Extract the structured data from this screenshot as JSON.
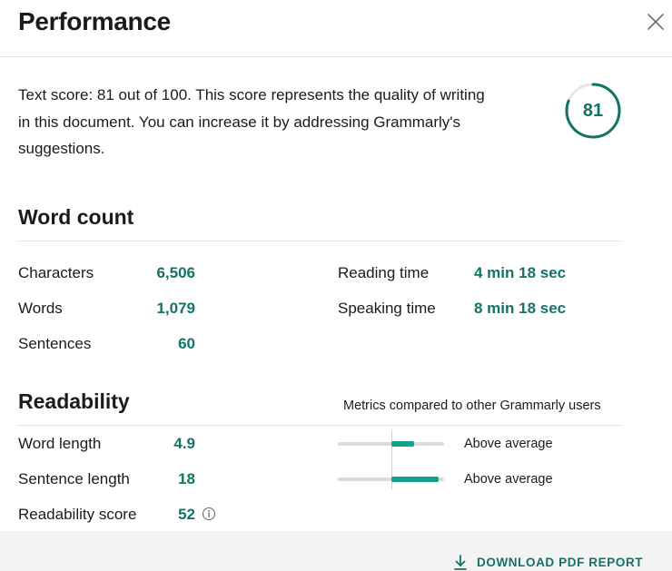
{
  "dialog": {
    "title": "Performance",
    "close_icon": "close-icon"
  },
  "score": {
    "description": "Text score: 81 out of 100. This score represents the quality of writing in this document. You can increase it by addressing Grammarly's suggestions.",
    "value": "81",
    "max": 100,
    "ring_color": "#137366"
  },
  "word_count": {
    "title": "Word count",
    "left": [
      {
        "label": "Characters",
        "value": "6,506"
      },
      {
        "label": "Words",
        "value": "1,079"
      },
      {
        "label": "Sentences",
        "value": "60"
      }
    ],
    "right": [
      {
        "label": "Reading time",
        "value": "4 min 18 sec"
      },
      {
        "label": "Speaking time",
        "value": "8 min 18 sec"
      }
    ]
  },
  "readability": {
    "title": "Readability",
    "compare_note": "Metrics compared to other Grammarly users",
    "metrics": [
      {
        "label": "Word length",
        "value": "4.9",
        "comparison": "Above average",
        "fill_from": 0.5,
        "fill_to": 0.72
      },
      {
        "label": "Sentence length",
        "value": "18",
        "comparison": "Above average",
        "fill_from": 0.5,
        "fill_to": 0.95
      },
      {
        "label": "Readability score",
        "value": "52",
        "info_icon": "info-icon"
      }
    ]
  },
  "footer": {
    "download_label": "DOWNLOAD PDF REPORT",
    "download_icon": "download-icon"
  },
  "colors": {
    "accent": "#137366",
    "bar_fill": "#15a08d",
    "bar_track": "#dcdcdc",
    "footer_bg": "#f3f3f3"
  }
}
